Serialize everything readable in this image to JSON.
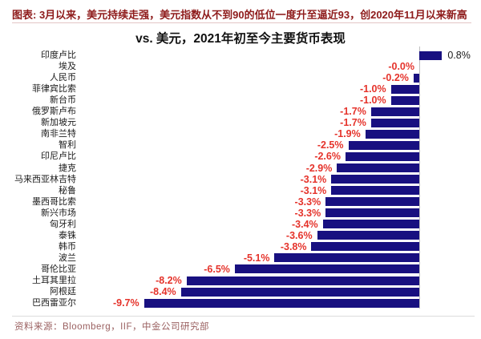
{
  "header": {
    "title": "图表: 3月以来，美元持续走强，美元指数从不到90的低位一度升至逼近93，创2020年11月以来新高"
  },
  "chart_data": {
    "type": "bar",
    "orientation": "horizontal",
    "title": "vs. 美元，2021年初至今主要货币表现",
    "categories": [
      "印度卢比",
      "埃及",
      "人民币",
      "菲律宾比索",
      "新台币",
      "俄罗斯卢布",
      "新加坡元",
      "南非兰特",
      "智利",
      "印尼卢比",
      "捷克",
      "马来西亚林吉特",
      "秘鲁",
      "墨西哥比索",
      "新兴市场",
      "匈牙利",
      "泰铢",
      "韩币",
      "波兰",
      "哥伦比亚",
      "土耳其里拉",
      "阿根廷",
      "巴西雷亚尔"
    ],
    "values": [
      0.8,
      -0.0,
      -0.2,
      -1.0,
      -1.0,
      -1.7,
      -1.7,
      -1.9,
      -2.5,
      -2.6,
      -2.9,
      -3.1,
      -3.1,
      -3.3,
      -3.3,
      -3.4,
      -3.6,
      -3.8,
      -5.1,
      -6.5,
      -8.2,
      -8.4,
      -9.7
    ],
    "value_labels": [
      "0.8%",
      "-0.0%",
      "-0.2%",
      "-1.0%",
      "-1.0%",
      "-1.7%",
      "-1.7%",
      "-1.9%",
      "-2.5%",
      "-2.6%",
      "-2.9%",
      "-3.1%",
      "-3.1%",
      "-3.3%",
      "-3.3%",
      "-3.4%",
      "-3.6%",
      "-3.8%",
      "-5.1%",
      "-6.5%",
      "-8.2%",
      "-8.4%",
      "-9.7%"
    ],
    "unit": "%",
    "xlim": [
      -10.5,
      1.5
    ],
    "grid": false,
    "legend": "none",
    "axis_ticks_shown": false,
    "value_labels_shown": true
  },
  "colors": {
    "bar": "#181080",
    "negative_label": "#e5332b",
    "positive_label": "#1a1a1a",
    "header_text": "#8e1b1b",
    "header_underline": "#e3c6c6",
    "axis_line": "#bfbfbf",
    "separator": "#dcdcdc",
    "footer_text": "#9a6060"
  },
  "footer": {
    "source": "资料来源：Bloomberg，IIF，中金公司研究部"
  }
}
